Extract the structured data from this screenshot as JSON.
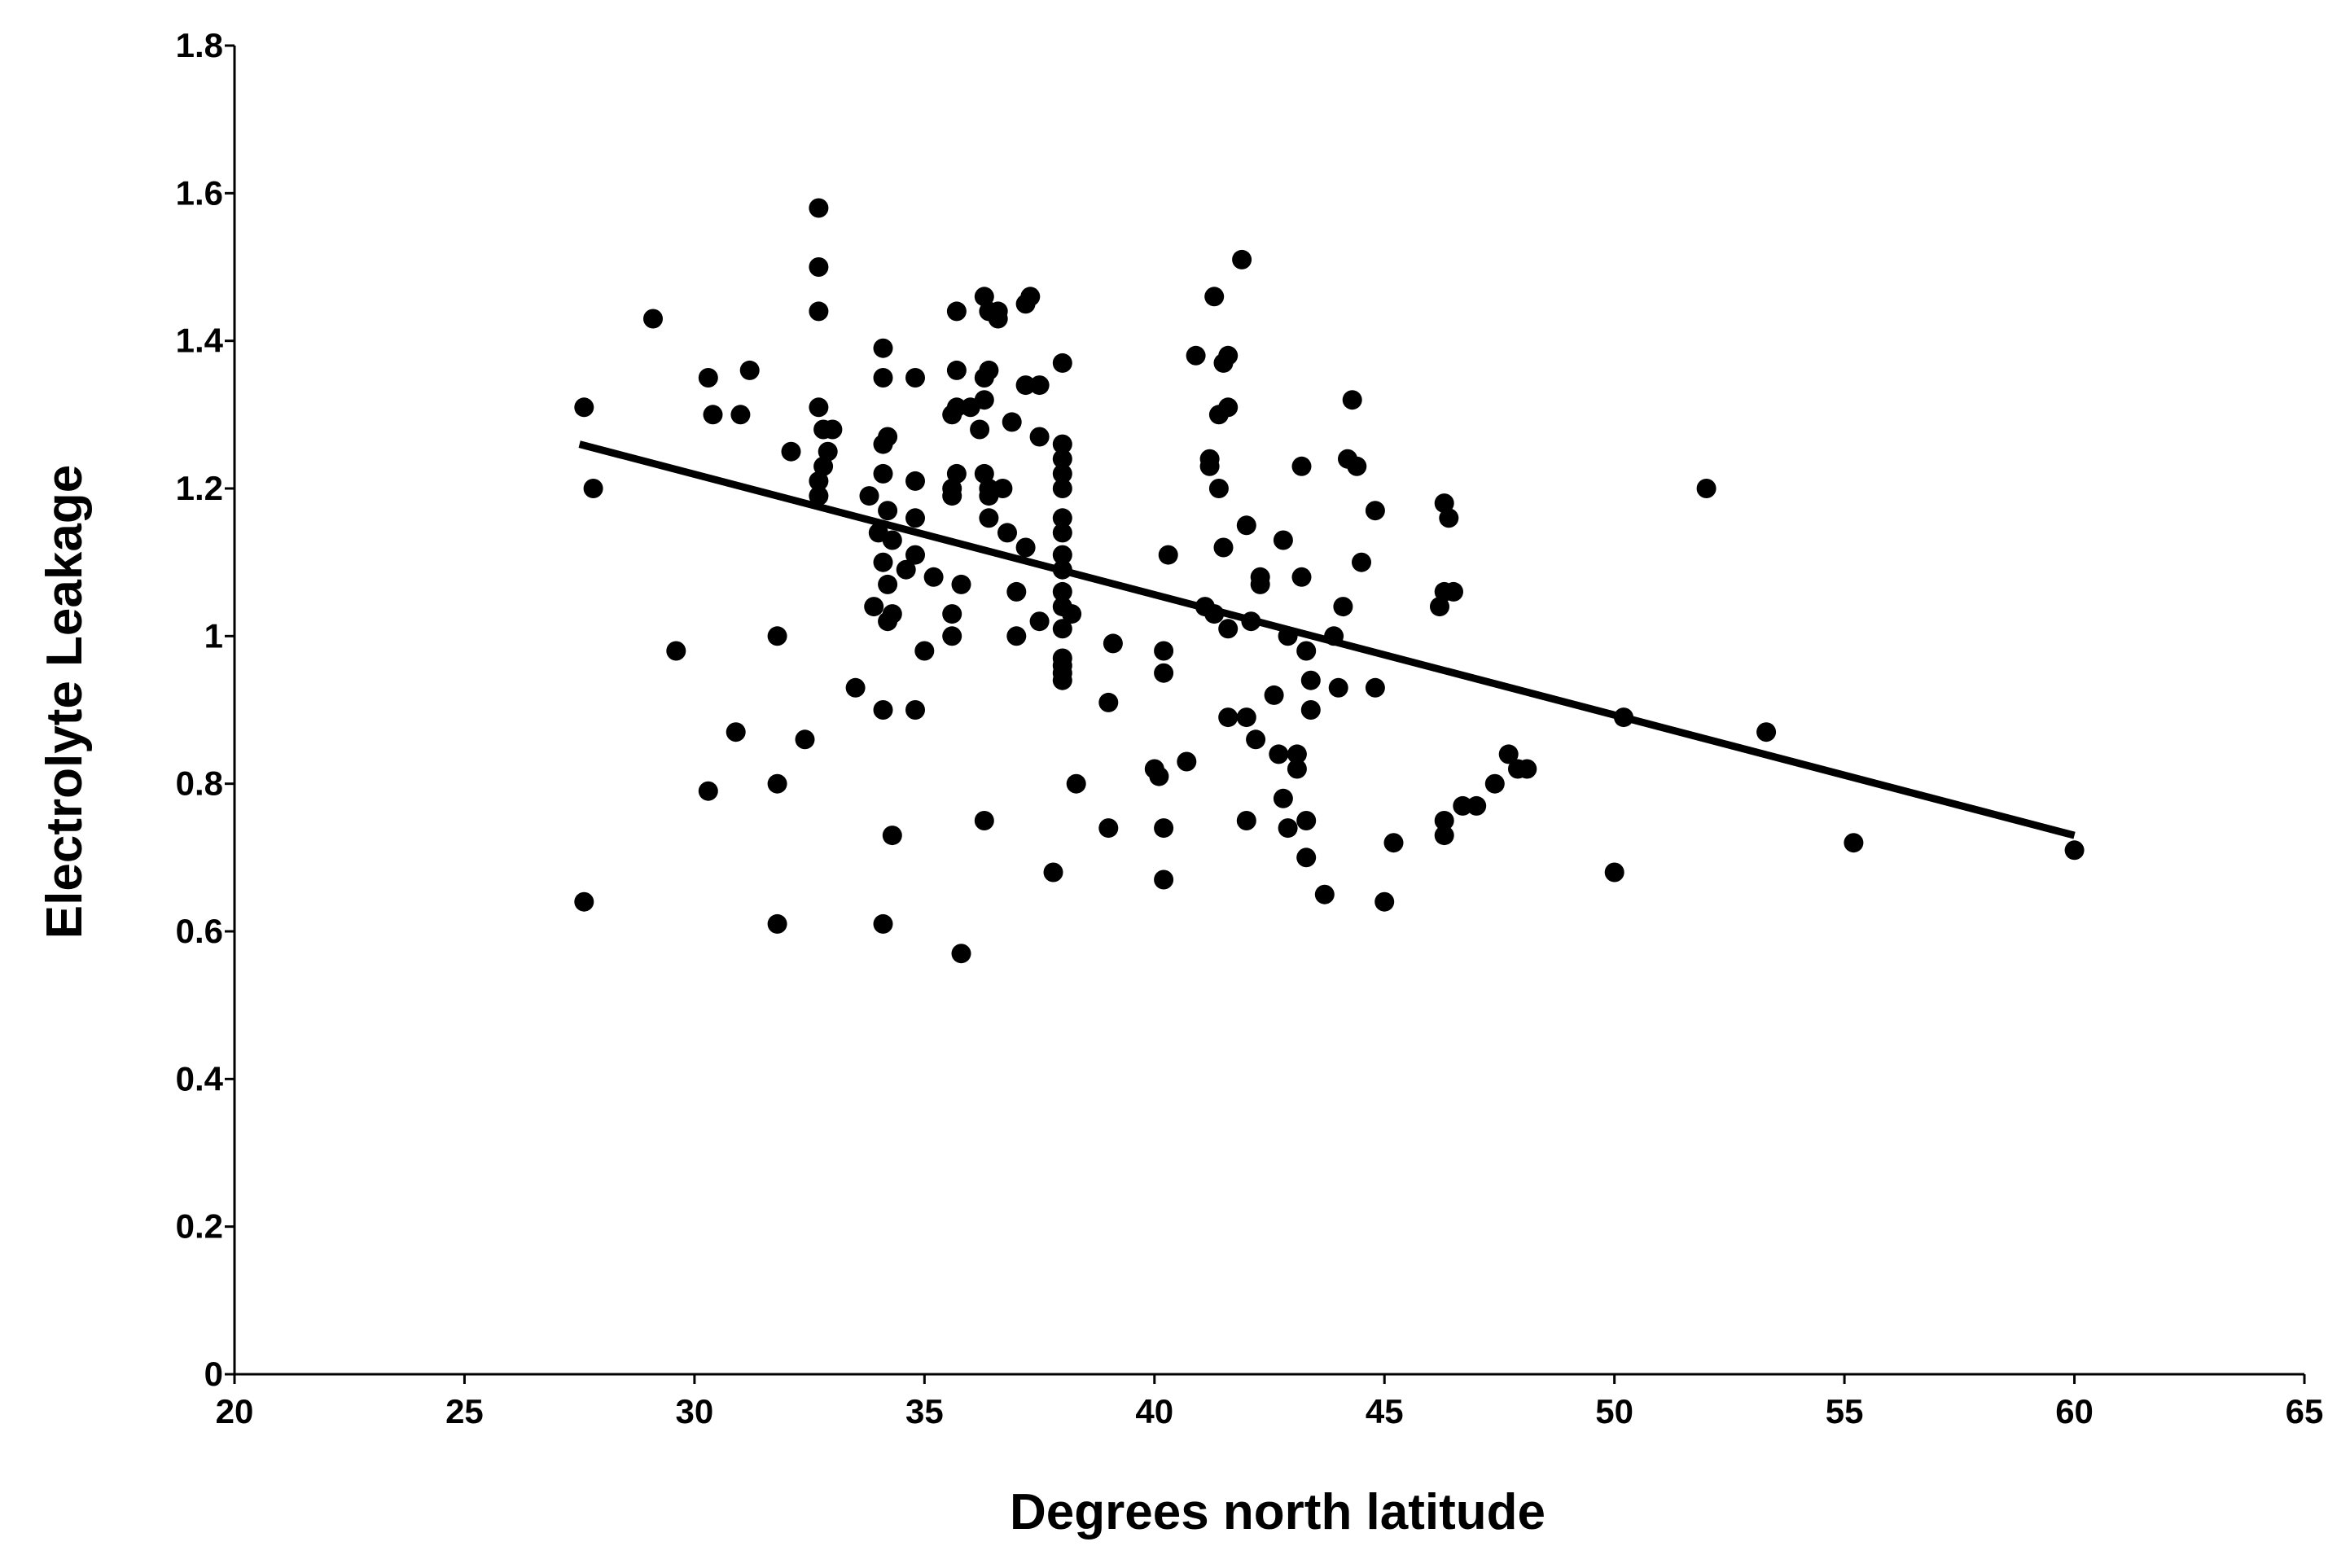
{
  "chart_data": {
    "type": "scatter",
    "title": "",
    "xlabel": "Degrees north latitude",
    "ylabel": "Electrolyte Leakage",
    "xlim": [
      20,
      65
    ],
    "ylim": [
      0,
      1.8
    ],
    "x_ticks": [
      "20",
      "25",
      "30",
      "35",
      "40",
      "45",
      "50",
      "55",
      "60",
      "65"
    ],
    "y_ticks": [
      "0",
      "0.2",
      "0.4",
      "0.6",
      "0.8",
      "1",
      "1.2",
      "1.4",
      "1.6",
      "1.8"
    ],
    "grid": false,
    "legend": "none",
    "colors": {
      "points": "#000000",
      "trendline": "#000000"
    },
    "trendline": {
      "x": [
        27.5,
        60
      ],
      "y": [
        1.26,
        0.73
      ]
    },
    "series": [
      {
        "points": [
          [
            27.6,
            1.31
          ],
          [
            27.8,
            1.2
          ],
          [
            27.6,
            0.64
          ],
          [
            29.1,
            1.43
          ],
          [
            29.6,
            0.98
          ],
          [
            30.3,
            1.35
          ],
          [
            30.4,
            1.3
          ],
          [
            30.9,
            0.87
          ],
          [
            31.0,
            1.3
          ],
          [
            31.2,
            1.36
          ],
          [
            30.3,
            0.79
          ],
          [
            31.8,
            1.0
          ],
          [
            31.8,
            0.8
          ],
          [
            31.8,
            0.61
          ],
          [
            32.1,
            1.25
          ],
          [
            32.4,
            0.86
          ],
          [
            32.7,
            1.58
          ],
          [
            32.7,
            1.5
          ],
          [
            32.7,
            1.44
          ],
          [
            32.7,
            1.31
          ],
          [
            32.8,
            1.28
          ],
          [
            32.9,
            1.25
          ],
          [
            32.8,
            1.23
          ],
          [
            32.7,
            1.21
          ],
          [
            32.7,
            1.19
          ],
          [
            33.0,
            1.28
          ],
          [
            33.5,
            0.93
          ],
          [
            33.8,
            1.19
          ],
          [
            33.9,
            1.04
          ],
          [
            34.1,
            1.39
          ],
          [
            34.1,
            1.35
          ],
          [
            34.1,
            1.26
          ],
          [
            34.2,
            1.27
          ],
          [
            34.1,
            1.22
          ],
          [
            34.2,
            1.17
          ],
          [
            34.0,
            1.14
          ],
          [
            34.1,
            1.1
          ],
          [
            34.2,
            1.07
          ],
          [
            34.3,
            1.03
          ],
          [
            34.2,
            1.02
          ],
          [
            34.1,
            0.9
          ],
          [
            34.3,
            0.73
          ],
          [
            34.1,
            0.61
          ],
          [
            34.3,
            1.13
          ],
          [
            34.6,
            1.09
          ],
          [
            34.8,
            1.35
          ],
          [
            34.8,
            1.21
          ],
          [
            34.8,
            1.16
          ],
          [
            34.8,
            1.11
          ],
          [
            34.8,
            0.9
          ],
          [
            35.0,
            0.98
          ],
          [
            35.2,
            1.08
          ],
          [
            35.7,
            1.44
          ],
          [
            35.7,
            1.36
          ],
          [
            35.6,
            1.3
          ],
          [
            35.7,
            1.31
          ],
          [
            35.7,
            1.22
          ],
          [
            35.6,
            1.2
          ],
          [
            35.6,
            1.19
          ],
          [
            35.8,
            1.07
          ],
          [
            35.6,
            1.03
          ],
          [
            35.6,
            1.0
          ],
          [
            35.8,
            0.57
          ],
          [
            36.0,
            1.31
          ],
          [
            36.3,
            1.46
          ],
          [
            36.4,
            1.44
          ],
          [
            36.6,
            1.44
          ],
          [
            36.6,
            1.43
          ],
          [
            36.4,
            1.36
          ],
          [
            36.3,
            1.35
          ],
          [
            36.3,
            1.32
          ],
          [
            36.2,
            1.28
          ],
          [
            36.3,
            1.22
          ],
          [
            36.4,
            1.2
          ],
          [
            36.4,
            1.19
          ],
          [
            36.4,
            1.16
          ],
          [
            36.3,
            0.75
          ],
          [
            36.7,
            1.2
          ],
          [
            36.8,
            1.14
          ],
          [
            36.9,
            1.29
          ],
          [
            37.0,
            1.06
          ],
          [
            37.0,
            1.0
          ],
          [
            37.2,
            1.45
          ],
          [
            37.3,
            1.46
          ],
          [
            37.2,
            1.34
          ],
          [
            37.2,
            1.12
          ],
          [
            37.5,
            1.34
          ],
          [
            37.5,
            1.27
          ],
          [
            37.5,
            1.02
          ],
          [
            37.8,
            0.68
          ],
          [
            38.0,
            1.37
          ],
          [
            38.0,
            1.26
          ],
          [
            38.0,
            1.24
          ],
          [
            38.0,
            1.22
          ],
          [
            38.0,
            1.2
          ],
          [
            38.0,
            1.16
          ],
          [
            38.0,
            1.14
          ],
          [
            38.0,
            1.11
          ],
          [
            38.0,
            1.09
          ],
          [
            38.0,
            1.06
          ],
          [
            38.0,
            1.04
          ],
          [
            38.0,
            1.01
          ],
          [
            38.0,
            0.97
          ],
          [
            38.0,
            0.96
          ],
          [
            38.0,
            0.95
          ],
          [
            38.0,
            0.94
          ],
          [
            38.2,
            1.03
          ],
          [
            38.3,
            0.8
          ],
          [
            39.0,
            0.91
          ],
          [
            39.0,
            0.74
          ],
          [
            39.1,
            0.99
          ],
          [
            40.0,
            0.82
          ],
          [
            40.1,
            0.81
          ],
          [
            40.2,
            0.98
          ],
          [
            40.2,
            0.95
          ],
          [
            40.2,
            0.74
          ],
          [
            40.2,
            0.67
          ],
          [
            40.3,
            1.11
          ],
          [
            40.7,
            0.83
          ],
          [
            40.9,
            1.38
          ],
          [
            41.1,
            1.04
          ],
          [
            41.2,
            1.24
          ],
          [
            41.2,
            1.23
          ],
          [
            41.3,
            1.46
          ],
          [
            41.3,
            1.03
          ],
          [
            41.4,
            1.3
          ],
          [
            41.4,
            1.2
          ],
          [
            41.5,
            1.37
          ],
          [
            41.5,
            1.12
          ],
          [
            41.6,
            1.38
          ],
          [
            41.6,
            1.31
          ],
          [
            41.6,
            1.01
          ],
          [
            41.6,
            0.89
          ],
          [
            41.9,
            1.51
          ],
          [
            42.0,
            1.15
          ],
          [
            42.0,
            0.89
          ],
          [
            42.0,
            0.75
          ],
          [
            42.1,
            1.02
          ],
          [
            42.2,
            0.86
          ],
          [
            42.3,
            1.08
          ],
          [
            42.3,
            1.07
          ],
          [
            42.6,
            0.92
          ],
          [
            42.7,
            0.84
          ],
          [
            42.8,
            0.78
          ],
          [
            42.8,
            1.13
          ],
          [
            42.9,
            1.0
          ],
          [
            42.9,
            0.74
          ],
          [
            43.1,
            0.84
          ],
          [
            43.1,
            0.82
          ],
          [
            43.2,
            1.23
          ],
          [
            43.2,
            1.08
          ],
          [
            43.3,
            0.98
          ],
          [
            43.3,
            0.75
          ],
          [
            43.3,
            0.7
          ],
          [
            43.4,
            0.94
          ],
          [
            43.4,
            0.9
          ],
          [
            43.7,
            0.65
          ],
          [
            43.9,
            1.0
          ],
          [
            44.0,
            0.93
          ],
          [
            44.1,
            1.04
          ],
          [
            44.2,
            1.24
          ],
          [
            44.3,
            1.32
          ],
          [
            44.4,
            1.23
          ],
          [
            44.5,
            1.1
          ],
          [
            44.8,
            1.17
          ],
          [
            44.8,
            0.93
          ],
          [
            45.0,
            0.64
          ],
          [
            45.2,
            0.72
          ],
          [
            46.2,
            1.04
          ],
          [
            46.3,
            1.06
          ],
          [
            46.3,
            1.18
          ],
          [
            46.4,
            1.16
          ],
          [
            46.3,
            0.75
          ],
          [
            46.3,
            0.73
          ],
          [
            46.5,
            1.06
          ],
          [
            46.7,
            0.77
          ],
          [
            47.0,
            0.77
          ],
          [
            47.4,
            0.8
          ],
          [
            47.7,
            0.84
          ],
          [
            47.9,
            0.82
          ],
          [
            48.1,
            0.82
          ],
          [
            50.0,
            0.68
          ],
          [
            50.2,
            0.89
          ],
          [
            52.0,
            1.2
          ],
          [
            53.3,
            0.87
          ],
          [
            55.2,
            0.72
          ],
          [
            60.0,
            0.71
          ]
        ]
      }
    ]
  }
}
